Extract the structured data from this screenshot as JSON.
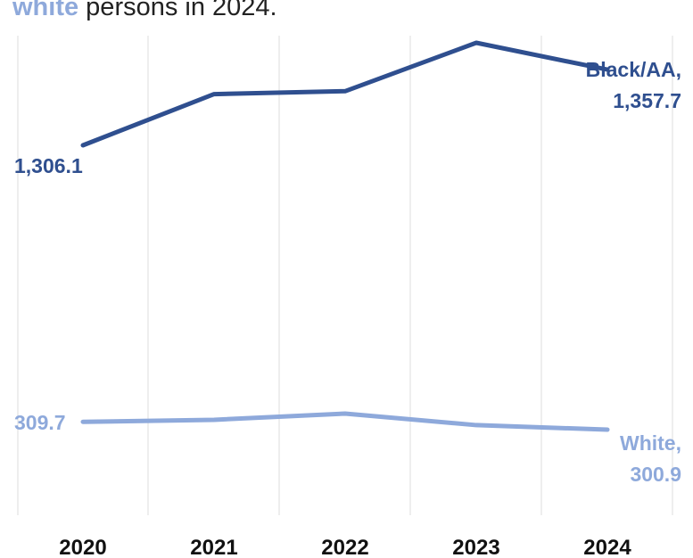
{
  "caption": {
    "highlight": "white",
    "rest": " persons in 2024."
  },
  "colors": {
    "black_aa": "#2f4f8f",
    "white": "#8ea9db",
    "grid": "#e4e4e4"
  },
  "chart_data": {
    "type": "line",
    "categories": [
      "2020",
      "2021",
      "2022",
      "2023",
      "2024"
    ],
    "ylim": [
      0,
      1450
    ],
    "grid": "vertical",
    "series": [
      {
        "name": "Black/AA",
        "values": [
          1306.1,
          1341.0,
          1343.0,
          1376.0,
          1357.7
        ],
        "color": "#2f4f8f",
        "start_label": "1,306.1",
        "end_label": [
          "Black/AA,",
          "1,357.7"
        ]
      },
      {
        "name": "White",
        "values": [
          309.7,
          312.0,
          319.0,
          306.0,
          300.9
        ],
        "color": "#8ea9db",
        "start_label": "309.7",
        "end_label": [
          "White,",
          "300.9"
        ]
      }
    ]
  }
}
